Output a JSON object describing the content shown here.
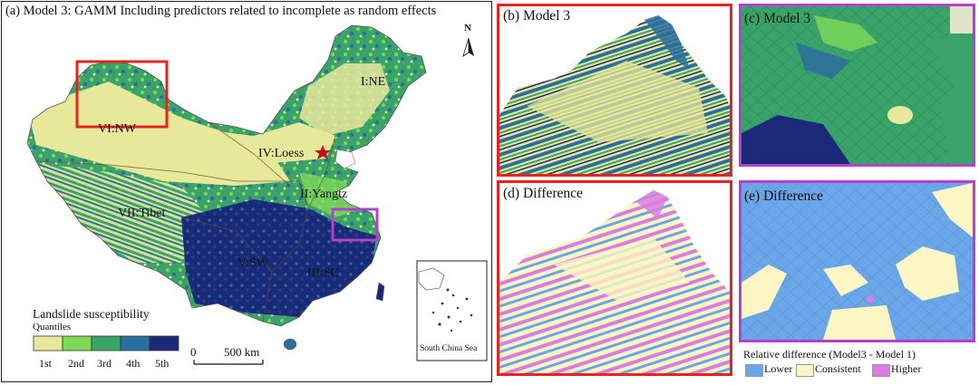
{
  "panel_a": {
    "title": "(a) Model 3: GAMM Including predictors related to incomplete as random effects",
    "regions": [
      "I:NE",
      "II:Yangtz",
      "III:SC",
      "IV:Loess",
      "V:SW",
      "VI:NW",
      "VII:Tibet"
    ],
    "north_label": "N",
    "legend": {
      "title": "Landslide susceptibility",
      "subtitle": "Quantiles",
      "classes": [
        {
          "label": "1st",
          "color": "#e8e89a"
        },
        {
          "label": "2nd",
          "color": "#7ed957"
        },
        {
          "label": "3rd",
          "color": "#3aa36a"
        },
        {
          "label": "4th",
          "color": "#2b6f9e"
        },
        {
          "label": "5th",
          "color": "#1a2a78"
        }
      ]
    },
    "scale": {
      "zero": "0",
      "distance": "500 km"
    },
    "inset_label": "South China Sea",
    "highlight_colors": {
      "nw_box": "#e8231f",
      "yangtze_box": "#b63fd0"
    }
  },
  "panel_b": {
    "label": "(b) Model 3",
    "frame_color": "#e8231f"
  },
  "panel_c": {
    "label": "(c) Model 3",
    "frame_color": "#b63fd0"
  },
  "panel_d": {
    "label": "(d) Difference",
    "frame_color": "#e8231f"
  },
  "panel_e": {
    "label": "(e) Difference",
    "frame_color": "#b63fd0"
  },
  "diff_legend": {
    "title": "Relative difference (Model3 - Model 1)",
    "classes": [
      {
        "label": "Lower",
        "color": "#6aa6e8"
      },
      {
        "label": "Consistent",
        "color": "#fbf6c4"
      },
      {
        "label": "Higher",
        "color": "#d87ee0"
      }
    ]
  }
}
